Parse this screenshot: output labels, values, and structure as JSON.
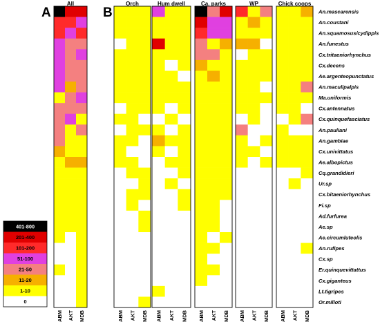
{
  "panels": {
    "a": "A",
    "b": "B"
  },
  "chart_data": {
    "type": "heatmap",
    "columns": [
      "ABM",
      "AKT",
      "MDB"
    ],
    "species": [
      "An.mascarensis",
      "An.coustani",
      "An.squamosus/cydippis",
      "An.funestus",
      "Cx.tritaeniorhynchus",
      "Cx.decens",
      "Ae.argenteopunctatus",
      "An.maculipalpis",
      "Ma.uniformis",
      "Cx.antennatus",
      "Cx.quinquefasciatus",
      "An.pauliani",
      "An.gambiae",
      "Cx.univittatus",
      "Ae.albopictus",
      "Cq.grandidieri",
      "Ur.sp",
      "Cx.bitaeniorhynchus",
      "Fi.sp",
      "Ad.furfurea",
      "Ae.sp",
      "Ae.circumluteolis",
      "An.rufipes",
      "Cx.sp",
      "Er.quinquevittattus",
      "Cx.giganteus",
      "Lt.tigripes",
      "Or.milloti"
    ],
    "legend": {
      "labels": [
        "401-800",
        "201-400",
        "101-200",
        "51-100",
        "21-50",
        "11-20",
        "1-10",
        "0"
      ],
      "colors": [
        "#000000",
        "#e00000",
        "#ff2a2a",
        "#e040e0",
        "#f48080",
        "#f6b000",
        "#ffff00",
        "#ffffff"
      ]
    },
    "value_encoding": "abundance class index: 0=401-800, 1=201-400, 2=101-200, 3=51-100, 4=21-50, 5=11-20, 6=1-10, 7=0",
    "panels": [
      {
        "title": "All",
        "group": "A",
        "data": [
          [
            0,
            1,
            1
          ],
          [
            2,
            2,
            3
          ],
          [
            2,
            3,
            2
          ],
          [
            3,
            4,
            4
          ],
          [
            3,
            4,
            3
          ],
          [
            3,
            4,
            4
          ],
          [
            3,
            4,
            4
          ],
          [
            3,
            5,
            4
          ],
          [
            6,
            4,
            3
          ],
          [
            4,
            4,
            4
          ],
          [
            4,
            3,
            6
          ],
          [
            4,
            6,
            4
          ],
          [
            4,
            6,
            6
          ],
          [
            5,
            6,
            6
          ],
          [
            6,
            5,
            5
          ],
          [
            6,
            6,
            6
          ],
          [
            6,
            6,
            6
          ],
          [
            6,
            6,
            6
          ],
          [
            6,
            6,
            6
          ],
          [
            6,
            6,
            6
          ],
          [
            6,
            6,
            6
          ],
          [
            6,
            7,
            6
          ],
          [
            7,
            7,
            6
          ],
          [
            7,
            7,
            6
          ],
          [
            6,
            7,
            6
          ],
          [
            7,
            7,
            6
          ],
          [
            7,
            7,
            6
          ],
          [
            7,
            7,
            6
          ]
        ]
      },
      {
        "title": "Orch",
        "group": "B",
        "data": [
          [
            6,
            6,
            6
          ],
          [
            6,
            6,
            6
          ],
          [
            6,
            6,
            6
          ],
          [
            7,
            6,
            6
          ],
          [
            6,
            6,
            6
          ],
          [
            6,
            6,
            6
          ],
          [
            6,
            6,
            6
          ],
          [
            6,
            6,
            6
          ],
          [
            6,
            6,
            6
          ],
          [
            7,
            6,
            6
          ],
          [
            6,
            6,
            7
          ],
          [
            7,
            6,
            6
          ],
          [
            6,
            6,
            7
          ],
          [
            6,
            7,
            7
          ],
          [
            6,
            6,
            7
          ],
          [
            7,
            6,
            6
          ],
          [
            7,
            7,
            6
          ],
          [
            7,
            6,
            6
          ],
          [
            7,
            6,
            7
          ],
          [
            7,
            7,
            6
          ],
          [
            7,
            7,
            6
          ],
          [
            7,
            7,
            7
          ],
          [
            7,
            7,
            7
          ],
          [
            7,
            7,
            7
          ],
          [
            7,
            7,
            7
          ],
          [
            7,
            7,
            7
          ],
          [
            7,
            7,
            7
          ],
          [
            7,
            7,
            6
          ]
        ]
      },
      {
        "title": "Hum dwell",
        "group": "B",
        "data": [
          [
            3,
            6,
            6
          ],
          [
            6,
            6,
            6
          ],
          [
            6,
            6,
            6
          ],
          [
            1,
            6,
            6
          ],
          [
            6,
            6,
            6
          ],
          [
            6,
            7,
            6
          ],
          [
            6,
            6,
            7
          ],
          [
            6,
            6,
            6
          ],
          [
            6,
            6,
            6
          ],
          [
            6,
            7,
            6
          ],
          [
            7,
            6,
            7
          ],
          [
            6,
            7,
            6
          ],
          [
            5,
            6,
            6
          ],
          [
            6,
            7,
            6
          ],
          [
            7,
            6,
            6
          ],
          [
            7,
            7,
            6
          ],
          [
            7,
            6,
            7
          ],
          [
            7,
            7,
            6
          ],
          [
            7,
            7,
            6
          ],
          [
            7,
            7,
            7
          ],
          [
            7,
            7,
            7
          ],
          [
            7,
            7,
            7
          ],
          [
            7,
            7,
            7
          ],
          [
            7,
            7,
            7
          ],
          [
            7,
            7,
            7
          ],
          [
            7,
            7,
            7
          ],
          [
            6,
            7,
            7
          ],
          [
            7,
            7,
            7
          ]
        ]
      },
      {
        "title": "Ca. parks",
        "group": "B",
        "data": [
          [
            0,
            4,
            1
          ],
          [
            1,
            3,
            3
          ],
          [
            2,
            3,
            3
          ],
          [
            4,
            6,
            5
          ],
          [
            4,
            4,
            6
          ],
          [
            5,
            6,
            6
          ],
          [
            6,
            5,
            6
          ],
          [
            6,
            6,
            6
          ],
          [
            6,
            6,
            6
          ],
          [
            6,
            6,
            6
          ],
          [
            6,
            6,
            6
          ],
          [
            6,
            6,
            6
          ],
          [
            6,
            6,
            6
          ],
          [
            6,
            6,
            6
          ],
          [
            6,
            6,
            6
          ],
          [
            6,
            6,
            6
          ],
          [
            6,
            6,
            6
          ],
          [
            6,
            6,
            6
          ],
          [
            6,
            6,
            7
          ],
          [
            6,
            6,
            7
          ],
          [
            6,
            6,
            7
          ],
          [
            6,
            7,
            6
          ],
          [
            6,
            6,
            7
          ],
          [
            6,
            7,
            7
          ],
          [
            6,
            6,
            7
          ],
          [
            6,
            7,
            7
          ],
          [
            7,
            7,
            7
          ],
          [
            7,
            7,
            7
          ]
        ]
      },
      {
        "title": "WP",
        "group": "B",
        "data": [
          [
            2,
            6,
            4
          ],
          [
            6,
            5,
            6
          ],
          [
            6,
            6,
            6
          ],
          [
            5,
            5,
            7
          ],
          [
            7,
            6,
            6
          ],
          [
            6,
            6,
            6
          ],
          [
            6,
            6,
            6
          ],
          [
            6,
            6,
            7
          ],
          [
            6,
            6,
            6
          ],
          [
            6,
            6,
            7
          ],
          [
            7,
            6,
            7
          ],
          [
            4,
            7,
            7
          ],
          [
            6,
            7,
            6
          ],
          [
            6,
            6,
            7
          ],
          [
            6,
            7,
            6
          ],
          [
            7,
            7,
            7
          ],
          [
            7,
            7,
            7
          ],
          [
            7,
            7,
            7
          ],
          [
            7,
            7,
            7
          ],
          [
            7,
            7,
            7
          ],
          [
            7,
            7,
            7
          ],
          [
            7,
            7,
            7
          ],
          [
            7,
            7,
            7
          ],
          [
            7,
            7,
            7
          ],
          [
            7,
            7,
            7
          ],
          [
            7,
            7,
            7
          ],
          [
            7,
            7,
            7
          ],
          [
            7,
            7,
            7
          ]
        ]
      },
      {
        "title": "Chick coops",
        "group": "B",
        "data": [
          [
            6,
            6,
            5
          ],
          [
            6,
            6,
            6
          ],
          [
            6,
            6,
            6
          ],
          [
            6,
            6,
            6
          ],
          [
            6,
            6,
            6
          ],
          [
            6,
            6,
            6
          ],
          [
            6,
            6,
            6
          ],
          [
            6,
            6,
            4
          ],
          [
            6,
            6,
            6
          ],
          [
            6,
            6,
            7
          ],
          [
            7,
            6,
            4
          ],
          [
            6,
            7,
            7
          ],
          [
            6,
            6,
            6
          ],
          [
            6,
            6,
            6
          ],
          [
            6,
            6,
            6
          ],
          [
            7,
            7,
            6
          ],
          [
            7,
            6,
            7
          ],
          [
            7,
            7,
            7
          ],
          [
            7,
            7,
            7
          ],
          [
            7,
            7,
            7
          ],
          [
            7,
            7,
            7
          ],
          [
            7,
            7,
            7
          ],
          [
            7,
            7,
            6
          ],
          [
            7,
            7,
            7
          ],
          [
            7,
            7,
            7
          ],
          [
            7,
            7,
            7
          ],
          [
            7,
            7,
            7
          ],
          [
            7,
            7,
            7
          ]
        ]
      }
    ]
  }
}
